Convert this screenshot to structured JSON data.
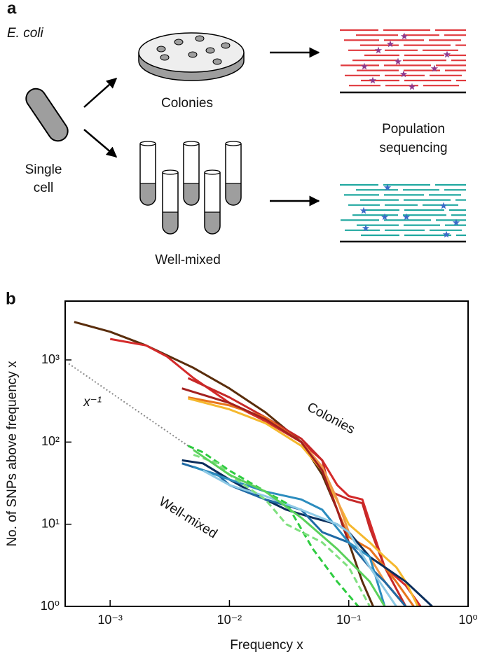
{
  "panel_a": {
    "label": "a",
    "organism": "E. coli",
    "start": [
      "Single",
      "cell"
    ],
    "colonies": "Colonies",
    "well_mixed": "Well-mixed",
    "sequencing": [
      "Population",
      "sequencing"
    ]
  },
  "panel_b_label": "b",
  "chart_data": {
    "type": "line",
    "log_x": true,
    "log_y": true,
    "xlabel": "Frequency x",
    "ylabel": "No. of SNPs above frequency x",
    "annotations": [
      "Colonies",
      "Well-mixed",
      "x⁻¹"
    ],
    "xlim": [
      0.00042,
      1
    ],
    "ylim": [
      1,
      5200
    ],
    "xticks": [
      {
        "value": 0.001,
        "label": "10⁻³"
      },
      {
        "value": 0.01,
        "label": "10⁻²"
      },
      {
        "value": 0.1,
        "label": "10⁻¹"
      },
      {
        "value": 1,
        "label": "10⁰"
      }
    ],
    "yticks": [
      {
        "value": 1,
        "label": "10⁰"
      },
      {
        "value": 10,
        "label": "10¹"
      },
      {
        "value": 100,
        "label": "10²"
      },
      {
        "value": 1000,
        "label": "10³"
      }
    ],
    "series": [
      {
        "color": "#8a8a8a",
        "style": "dotted",
        "x": [
          0.00045,
          0.005
        ],
        "values": [
          900,
          81
        ]
      },
      {
        "color": "#5a2d0c",
        "style": "solid",
        "x": [
          0.0005,
          0.001,
          0.002,
          0.005,
          0.01,
          0.02,
          0.04,
          0.06,
          0.08,
          0.1,
          0.13,
          0.16
        ],
        "values": [
          2900,
          2200,
          1500,
          800,
          450,
          230,
          100,
          40,
          15,
          6,
          2,
          1
        ]
      },
      {
        "color": "#d42a2a",
        "style": "solid",
        "x": [
          0.001,
          0.002,
          0.003,
          0.005,
          0.01,
          0.02,
          0.04,
          0.06,
          0.08,
          0.1,
          0.13,
          0.16,
          0.2,
          0.3,
          0.4
        ],
        "values": [
          1800,
          1500,
          1100,
          600,
          300,
          180,
          100,
          60,
          30,
          22,
          20,
          8,
          3,
          1.8,
          1
        ]
      },
      {
        "color": "#c62828",
        "style": "solid",
        "x": [
          0.0045,
          0.01,
          0.02,
          0.04,
          0.06,
          0.07,
          0.1,
          0.13,
          0.15,
          0.2,
          0.3
        ],
        "values": [
          600,
          350,
          200,
          110,
          60,
          25,
          20,
          18,
          9,
          3,
          1
        ]
      },
      {
        "color": "#e8741c",
        "style": "solid",
        "x": [
          0.0045,
          0.01,
          0.02,
          0.04,
          0.06,
          0.08,
          0.1,
          0.15,
          0.2,
          0.25,
          0.35
        ],
        "values": [
          350,
          280,
          200,
          100,
          50,
          15,
          7,
          5,
          3,
          2,
          1
        ]
      },
      {
        "color": "#f5b82e",
        "style": "solid",
        "x": [
          0.0045,
          0.01,
          0.02,
          0.04,
          0.06,
          0.1,
          0.15,
          0.2,
          0.25,
          0.3,
          0.38
        ],
        "values": [
          340,
          250,
          170,
          90,
          45,
          10,
          6,
          4,
          3,
          2,
          1
        ]
      },
      {
        "color": "#f09a4a",
        "style": "solid",
        "x": [
          0.01,
          0.02,
          0.04,
          0.06,
          0.08,
          0.1,
          0.15,
          0.2,
          0.3
        ],
        "values": [
          300,
          190,
          100,
          50,
          20,
          8,
          4,
          2,
          1
        ]
      },
      {
        "color": "#a3201f",
        "style": "solid",
        "x": [
          0.004,
          0.01,
          0.02,
          0.04,
          0.06,
          0.08,
          0.1,
          0.15,
          0.2,
          0.3
        ],
        "values": [
          450,
          300,
          190,
          100,
          45,
          15,
          6,
          3,
          2,
          1
        ]
      },
      {
        "color": "#0b2e5c",
        "style": "solid",
        "x": [
          0.004,
          0.006,
          0.01,
          0.02,
          0.03,
          0.05,
          0.08,
          0.1,
          0.15,
          0.2,
          0.3,
          0.5
        ],
        "values": [
          60,
          55,
          35,
          20,
          15,
          12,
          10,
          8,
          4,
          3,
          2,
          1
        ]
      },
      {
        "color": "#1f6aa5",
        "style": "solid",
        "x": [
          0.004,
          0.008,
          0.01,
          0.02,
          0.04,
          0.06,
          0.1,
          0.15,
          0.2,
          0.3
        ],
        "values": [
          55,
          40,
          30,
          20,
          15,
          8,
          6,
          3,
          2,
          1
        ]
      },
      {
        "color": "#2b8cbe",
        "style": "solid",
        "x": [
          0.005,
          0.01,
          0.02,
          0.04,
          0.06,
          0.1,
          0.15,
          0.2
        ],
        "values": [
          50,
          35,
          25,
          20,
          15,
          6,
          4,
          1
        ]
      },
      {
        "color": "#8ecae6",
        "style": "solid",
        "x": [
          0.006,
          0.01,
          0.02,
          0.04,
          0.08,
          0.1,
          0.15,
          0.25
        ],
        "values": [
          45,
          30,
          22,
          15,
          10,
          8,
          3,
          1
        ]
      },
      {
        "color": "#2ecc40",
        "style": "dashed",
        "x": [
          0.0045,
          0.006,
          0.01,
          0.02,
          0.03,
          0.05,
          0.08,
          0.12
        ],
        "values": [
          90,
          75,
          45,
          25,
          18,
          5,
          2,
          1
        ]
      },
      {
        "color": "#7fe07f",
        "style": "dashed",
        "x": [
          0.005,
          0.008,
          0.01,
          0.02,
          0.03,
          0.06,
          0.1,
          0.15
        ],
        "values": [
          70,
          55,
          40,
          20,
          10,
          6,
          3,
          1
        ]
      },
      {
        "color": "#5ad15a",
        "style": "solid",
        "x": [
          0.005,
          0.01,
          0.02,
          0.04,
          0.08,
          0.15,
          0.2
        ],
        "values": [
          80,
          40,
          25,
          12,
          5,
          2,
          1
        ]
      }
    ]
  }
}
